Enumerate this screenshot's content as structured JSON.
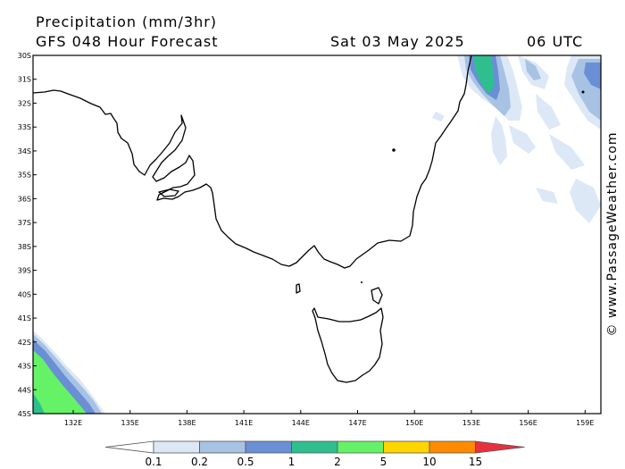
{
  "header": {
    "title": "Precipitation (mm/3hr)",
    "subtitle": "GFS 048 Hour Forecast",
    "date": "Sat 03 May 2025",
    "time": "06 UTC"
  },
  "watermark": "© www.PassageWeather.com",
  "axes": {
    "lat_labels": [
      "30S",
      "31S",
      "32S",
      "33S",
      "34S",
      "35S",
      "36S",
      "37S",
      "38S",
      "39S",
      "40S",
      "41S",
      "42S",
      "43S",
      "44S",
      "45S"
    ],
    "lon_labels": [
      "132E",
      "135E",
      "138E",
      "141E",
      "144E",
      "147E",
      "150E",
      "153E",
      "156E",
      "159E"
    ]
  },
  "legend": {
    "ticks": [
      "0.1",
      "0.2",
      "0.5",
      "1",
      "2",
      "5",
      "10",
      "15"
    ],
    "colors": [
      "#ffffff",
      "#dce8f5",
      "#a8c2e4",
      "#6a8fd4",
      "#2fbf8f",
      "#66f266",
      "#ffd500",
      "#ff8a00",
      "#e8303c"
    ]
  }
}
